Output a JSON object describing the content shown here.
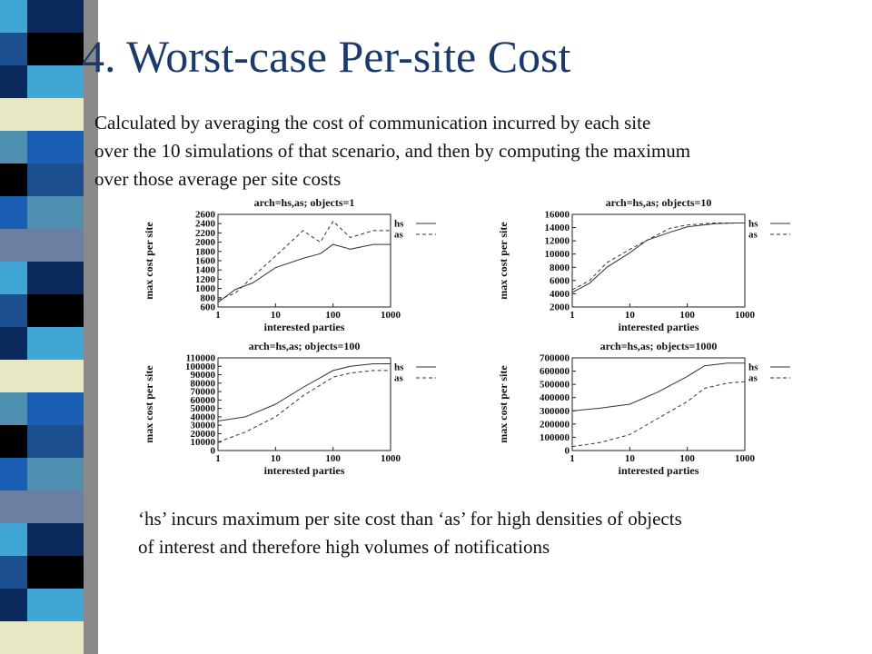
{
  "slide": {
    "title": "4. Worst-case Per-site Cost",
    "description_lines": [
      "Calculated by averaging the cost of communication incurred by each site",
      "over the 10 simulations of that scenario, and then by computing the maximum",
      "over those average per site costs"
    ],
    "conclusion_lines": [
      "‘hs’ incurs maximum per site cost than ‘as’ for high densities of objects",
      "of interest and therefore high volumes of notifications"
    ],
    "stripe_colors": [
      "#3fa6d6",
      "#1b4f8f",
      "#0a2a5e",
      "#e7e7c4",
      "#4f8fb0",
      "#000000",
      "#1a5fb4",
      "#6b7fa3"
    ]
  },
  "chart_data": [
    {
      "type": "line",
      "title": "arch=hs,as; objects=1",
      "xlabel": "interested parties",
      "ylabel": "max cost per site",
      "xscale": "log",
      "xlim": [
        1,
        1000
      ],
      "ylim": [
        600,
        2600
      ],
      "xticks": [
        "1",
        "10",
        "100",
        "1000"
      ],
      "yticks": [
        "600",
        "800",
        "1000",
        "1200",
        "1400",
        "1600",
        "1800",
        "2000",
        "2200",
        "2400",
        "2600"
      ],
      "legend_position": "top-right",
      "series": [
        {
          "name": "hs",
          "dash": "solid",
          "x": [
            1,
            2,
            4,
            10,
            30,
            60,
            100,
            200,
            500,
            1000
          ],
          "y": [
            700,
            980,
            1120,
            1450,
            1650,
            1750,
            1950,
            1850,
            1950,
            1950
          ]
        },
        {
          "name": "as",
          "dash": "dashed",
          "x": [
            1,
            2,
            4,
            10,
            30,
            60,
            100,
            200,
            500,
            1000
          ],
          "y": [
            750,
            900,
            1250,
            1700,
            2250,
            2000,
            2450,
            2100,
            2250,
            2250
          ]
        }
      ]
    },
    {
      "type": "line",
      "title": "arch=hs,as; objects=10",
      "xlabel": "interested parties",
      "ylabel": "max cost per site",
      "xscale": "log",
      "xlim": [
        1,
        1000
      ],
      "ylim": [
        2000,
        16000
      ],
      "xticks": [
        "1",
        "10",
        "100",
        "1000"
      ],
      "yticks": [
        "2000",
        "4000",
        "6000",
        "8000",
        "10000",
        "12000",
        "14000",
        "16000"
      ],
      "legend_position": "top-right",
      "series": [
        {
          "name": "hs",
          "dash": "solid",
          "x": [
            1,
            2,
            4,
            10,
            20,
            50,
            100,
            300,
            700,
            1000
          ],
          "y": [
            4200,
            5600,
            8000,
            10200,
            12100,
            13300,
            14100,
            14600,
            14700,
            14700
          ]
        },
        {
          "name": "as",
          "dash": "dashed",
          "x": [
            1,
            2,
            4,
            10,
            20,
            50,
            100,
            300,
            700,
            1000
          ],
          "y": [
            4600,
            6000,
            8700,
            10700,
            12100,
            13900,
            14400,
            14700,
            14700,
            14700
          ]
        }
      ]
    },
    {
      "type": "line",
      "title": "arch=hs,as; objects=100",
      "xlabel": "interested parties",
      "ylabel": "max cost per site",
      "xscale": "log",
      "xlim": [
        1,
        1000
      ],
      "ylim": [
        0,
        110000
      ],
      "xticks": [
        "1",
        "10",
        "100",
        "1000"
      ],
      "yticks": [
        "0",
        "10000",
        "20000",
        "30000",
        "40000",
        "50000",
        "60000",
        "70000",
        "80000",
        "90000",
        "100000",
        "110000"
      ],
      "legend_position": "top-right",
      "series": [
        {
          "name": "hs",
          "dash": "solid",
          "x": [
            1,
            3,
            10,
            30,
            100,
            200,
            500,
            1000
          ],
          "y": [
            35000,
            40000,
            55000,
            75000,
            95000,
            100000,
            103000,
            103000
          ]
        },
        {
          "name": "as",
          "dash": "dashed",
          "x": [
            1,
            3,
            10,
            30,
            100,
            200,
            500,
            1000
          ],
          "y": [
            10000,
            22000,
            40000,
            65000,
            87000,
            92000,
            95000,
            95000
          ]
        }
      ]
    },
    {
      "type": "line",
      "title": "arch=hs,as; objects=1000",
      "xlabel": "interested parties",
      "ylabel": "max cost per site",
      "xscale": "log",
      "xlim": [
        1,
        1000
      ],
      "ylim": [
        0,
        700000
      ],
      "xticks": [
        "1",
        "10",
        "100",
        "1000"
      ],
      "yticks": [
        "0",
        "100000",
        "200000",
        "300000",
        "400000",
        "500000",
        "600000",
        "700000"
      ],
      "legend_position": "top-right",
      "series": [
        {
          "name": "hs",
          "dash": "solid",
          "x": [
            1,
            3,
            10,
            30,
            100,
            200,
            500,
            1000
          ],
          "y": [
            300000,
            320000,
            350000,
            440000,
            560000,
            640000,
            660000,
            660000
          ]
        },
        {
          "name": "as",
          "dash": "dashed",
          "x": [
            1,
            3,
            10,
            30,
            100,
            200,
            500,
            1000
          ],
          "y": [
            30000,
            60000,
            120000,
            240000,
            370000,
            470000,
            510000,
            520000
          ]
        }
      ]
    }
  ]
}
